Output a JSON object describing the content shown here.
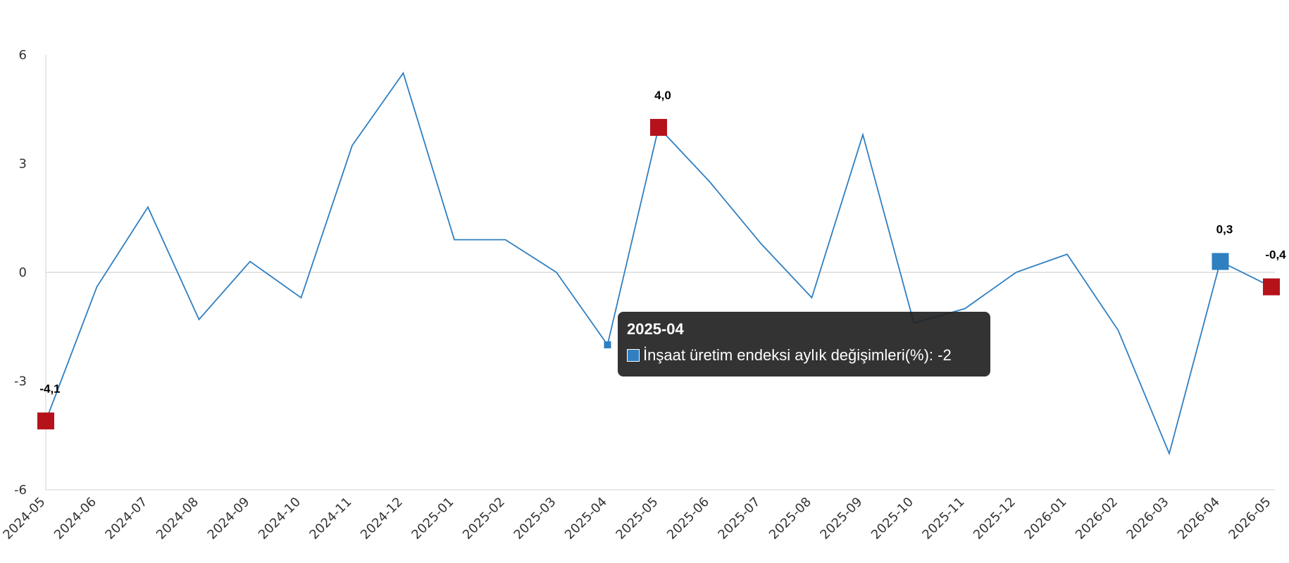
{
  "chart_data": {
    "type": "line",
    "categories": [
      "2024-05",
      "2024-06",
      "2024-07",
      "2024-08",
      "2024-09",
      "2024-10",
      "2024-11",
      "2024-12",
      "2025-01",
      "2025-02",
      "2025-03",
      "2025-04",
      "2025-05",
      "2025-06",
      "2025-07",
      "2025-08",
      "2025-09",
      "2025-10",
      "2025-11",
      "2025-12",
      "2026-01",
      "2026-02",
      "2026-03",
      "2026-04",
      "2026-05"
    ],
    "series": [
      {
        "name": "İnşaat üretim endeksi aylık değişimleri(%)",
        "color": "#2f7fc1",
        "values": [
          -4.1,
          -0.4,
          1.8,
          -1.3,
          0.3,
          -0.7,
          3.5,
          5.5,
          0.9,
          0.9,
          0.0,
          -2.0,
          4.0,
          2.5,
          0.8,
          -0.7,
          3.8,
          -1.4,
          -1.0,
          0.0,
          0.5,
          -1.6,
          -5.0,
          0.3,
          -0.4
        ]
      }
    ],
    "ylim": [
      -6,
      6
    ],
    "yticks": [
      "-6",
      "-3",
      "0",
      "3",
      "6"
    ],
    "ytick_values": [
      -6,
      -3,
      0,
      3,
      6
    ],
    "grid": "zero-line only",
    "legend": "none",
    "markers": [
      {
        "category": "2024-05",
        "value": -4.1,
        "label": "-4,1",
        "color": "#b5121b"
      },
      {
        "category": "2025-05",
        "value": 4.0,
        "label": "4,0",
        "color": "#b5121b"
      },
      {
        "category": "2026-04",
        "value": 0.3,
        "label": "0,3",
        "color": "#2f7fc1"
      },
      {
        "category": "2026-05",
        "value": -0.4,
        "label": "-0,4",
        "color": "#b5121b"
      }
    ],
    "tooltip": {
      "category": "2025-04",
      "title": "2025-04",
      "text": "İnşaat üretim endeksi aylık değişimleri(%): -2",
      "value": -2
    }
  }
}
